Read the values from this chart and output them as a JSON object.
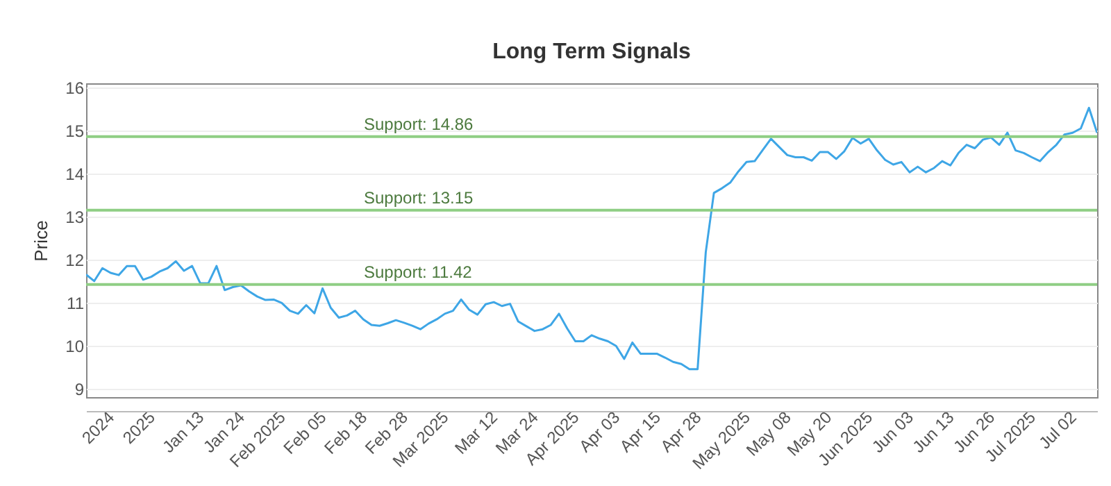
{
  "chart_data": {
    "type": "line",
    "title": "Long Term Signals",
    "ylabel": "Price",
    "categories": [
      null,
      null,
      null,
      "2024",
      null,
      null,
      null,
      null,
      "2025",
      null,
      null,
      null,
      null,
      null,
      "Jan 13",
      null,
      null,
      null,
      null,
      "Jan 24",
      null,
      null,
      null,
      null,
      "Feb 2025",
      null,
      null,
      null,
      null,
      "Feb 05",
      null,
      null,
      null,
      null,
      "Feb 18",
      null,
      null,
      null,
      null,
      "Feb 28",
      null,
      null,
      null,
      null,
      "Mar 2025",
      null,
      null,
      null,
      null,
      null,
      "Mar 12",
      null,
      null,
      null,
      null,
      "Mar 24",
      null,
      null,
      null,
      null,
      "Apr 2025",
      null,
      null,
      null,
      null,
      "Apr 03",
      null,
      null,
      null,
      null,
      "Apr 15",
      null,
      null,
      null,
      null,
      "Apr 28",
      null,
      null,
      null,
      null,
      null,
      "May 2025",
      null,
      null,
      null,
      null,
      "May 08",
      null,
      null,
      null,
      null,
      "May 20",
      null,
      null,
      null,
      null,
      "Jun 2025",
      null,
      null,
      null,
      null,
      "Jun 03",
      null,
      null,
      null,
      null,
      "Jun 13",
      null,
      null,
      null,
      null,
      "Jun 26",
      null,
      null,
      null,
      null,
      "Jul 2025",
      null,
      null,
      null,
      null,
      "Jul 02",
      null,
      null,
      null
    ],
    "series": [
      {
        "color": "#3ea6e6",
        "values": [
          11.65,
          11.5,
          11.8,
          11.69,
          11.64,
          11.85,
          11.85,
          11.53,
          11.6,
          11.72,
          11.8,
          11.96,
          11.74,
          11.85,
          11.45,
          11.45,
          11.85,
          11.29,
          11.36,
          11.4,
          11.26,
          11.14,
          11.06,
          11.07,
          10.99,
          10.81,
          10.74,
          10.94,
          10.75,
          11.33,
          10.88,
          10.65,
          10.7,
          10.81,
          10.61,
          10.48,
          10.46,
          10.52,
          10.59,
          10.53,
          10.46,
          10.38,
          10.51,
          10.61,
          10.74,
          10.81,
          11.07,
          10.83,
          10.72,
          10.96,
          11.01,
          10.92,
          10.97,
          10.56,
          10.45,
          10.34,
          10.38,
          10.48,
          10.74,
          10.4,
          10.1,
          10.1,
          10.24,
          10.16,
          10.1,
          9.99,
          9.69,
          10.07,
          9.81,
          9.81,
          9.81,
          9.72,
          9.62,
          9.57,
          9.45,
          9.45,
          12.17,
          13.55,
          13.66,
          13.79,
          14.05,
          14.27,
          14.29,
          14.55,
          14.81,
          14.62,
          14.43,
          14.38,
          14.38,
          14.3,
          14.5,
          14.5,
          14.34,
          14.52,
          14.83,
          14.7,
          14.81,
          14.54,
          14.32,
          14.21,
          14.27,
          14.03,
          14.16,
          14.03,
          14.13,
          14.29,
          14.19,
          14.48,
          14.67,
          14.59,
          14.79,
          14.84,
          14.67,
          14.95,
          14.54,
          14.48,
          14.38,
          14.29,
          14.5,
          14.67,
          14.91,
          14.95,
          15.05,
          15.53,
          14.95
        ]
      }
    ],
    "ylim": [
      8.8,
      16.1
    ],
    "yticks": [
      9,
      10,
      11,
      12,
      13,
      14,
      15,
      16
    ],
    "grid": "y",
    "marker": "none",
    "line_style": "solid",
    "ref_lines": [
      {
        "axis": "y",
        "value": 14.86,
        "label": "Support: 14.86",
        "color": "#8fce84"
      },
      {
        "axis": "y",
        "value": 13.15,
        "label": "Support: 13.15",
        "color": "#8fce84"
      },
      {
        "axis": "y",
        "value": 11.42,
        "label": "Support: 11.42",
        "color": "#8fce84"
      }
    ]
  }
}
